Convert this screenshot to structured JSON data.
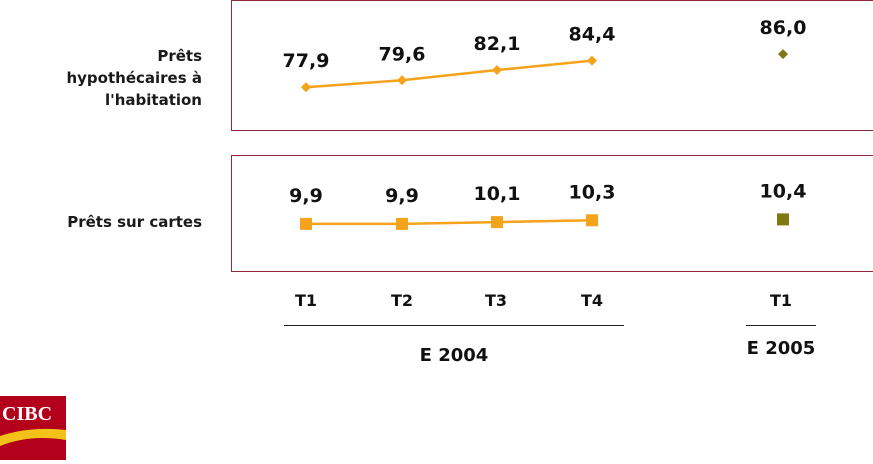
{
  "rows": {
    "mortgage_label": "Prêts\nhypothécaires à\nl'habitation",
    "cards_label": "Prêts sur cartes"
  },
  "axis": {
    "quarters": [
      "T1",
      "T2",
      "T3",
      "T4",
      "T1"
    ],
    "year_2004": "E 2004",
    "year_2005": "E 2005"
  },
  "logo": {
    "text": "CIBC"
  },
  "colors": {
    "line_2004": "#f5a31a",
    "marker_2005": "#7d7a12",
    "panel_border": "#8e2a3a"
  },
  "chart_data": [
    {
      "type": "line",
      "title": "",
      "row_label": "Prêts hypothécaires à l'habitation",
      "categories": [
        "T1",
        "T2",
        "T3",
        "T4",
        "T1"
      ],
      "series": [
        {
          "values": [
            77.9,
            79.6,
            82.1,
            84.4,
            null
          ],
          "labels": [
            "77,9",
            "79,6",
            "82,1",
            "84,4",
            null
          ],
          "marker": "diamond"
        },
        {
          "values": [
            null,
            null,
            null,
            null,
            86.0
          ],
          "labels": [
            null,
            null,
            null,
            null,
            "86,0"
          ],
          "marker": "diamond"
        }
      ],
      "ylim": [
        76,
        87
      ]
    },
    {
      "type": "line",
      "title": "",
      "row_label": "Prêts sur cartes",
      "categories": [
        "T1",
        "T2",
        "T3",
        "T4",
        "T1"
      ],
      "series": [
        {
          "values": [
            9.9,
            9.9,
            10.1,
            10.3,
            null
          ],
          "labels": [
            "9,9",
            "9,9",
            "10,1",
            "10,3",
            null
          ],
          "marker": "square"
        },
        {
          "values": [
            null,
            null,
            null,
            null,
            10.4
          ],
          "labels": [
            null,
            null,
            null,
            null,
            "10,4"
          ],
          "marker": "square"
        }
      ],
      "ylim": [
        9,
        12
      ]
    }
  ]
}
